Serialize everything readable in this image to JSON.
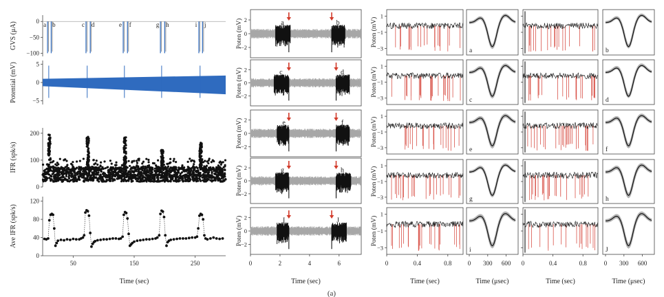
{
  "figure_caption": "(a)",
  "chart_data": [
    {
      "type": "line",
      "panel": "gvs",
      "ylabel": "GVS (μA)",
      "ylim": [
        -110,
        20
      ],
      "yticks": [
        "0",
        "−50",
        "−100"
      ],
      "xlim": [
        0,
        300
      ],
      "letters": [
        "a",
        "b",
        "c",
        "d",
        "e",
        "f",
        "g",
        "h",
        "i",
        "j"
      ],
      "pulse_times": [
        8,
        14,
        71,
        78,
        132,
        139,
        193,
        200,
        256,
        262
      ],
      "pulse_amplitude": -100
    },
    {
      "type": "line",
      "panel": "potential",
      "ylabel": "Potential (mV)",
      "ylim": [
        -6,
        6
      ],
      "yticks": [
        "5",
        "0",
        "−5"
      ],
      "xlim": [
        0,
        300
      ],
      "band_start": [
        -1.0,
        1.0
      ],
      "band_end": [
        -3.2,
        1.9
      ]
    },
    {
      "type": "scatter",
      "panel": "ifr",
      "ylabel": "IFR (spk/s)",
      "ylim": [
        0,
        220
      ],
      "yticks": [
        "200",
        "100",
        "0"
      ],
      "xlim": [
        0,
        300
      ],
      "baseline_range": [
        20,
        75
      ],
      "bursts": [
        {
          "x": 11,
          "peak": 195
        },
        {
          "x": 74,
          "peak": 190
        },
        {
          "x": 135,
          "peak": 185
        },
        {
          "x": 196,
          "peak": 140
        },
        {
          "x": 259,
          "peak": 165
        }
      ]
    },
    {
      "type": "line",
      "panel": "ave-ifr",
      "ylabel": "Ave IFR (spk/s)",
      "ylim": [
        0,
        130
      ],
      "yticks": [
        "120",
        "80",
        "40",
        "0"
      ],
      "xticks": [
        "50",
        "150",
        "250"
      ],
      "xlim": [
        0,
        300
      ],
      "xlabel": "Time (sec)",
      "x": [
        3,
        6,
        9,
        11,
        13,
        15,
        17,
        19,
        21,
        23,
        25,
        30,
        35,
        40,
        45,
        50,
        55,
        60,
        63,
        66,
        68,
        70,
        72,
        74,
        76,
        78,
        80,
        82,
        84,
        86,
        90,
        95,
        100,
        105,
        110,
        115,
        120,
        125,
        128,
        131,
        133,
        135,
        137,
        139,
        141,
        143,
        145,
        147,
        150,
        155,
        160,
        165,
        170,
        175,
        180,
        185,
        188,
        191,
        193,
        195,
        197,
        199,
        201,
        203,
        205,
        207,
        210,
        215,
        220,
        225,
        230,
        235,
        240,
        245,
        250,
        253,
        255,
        257,
        259,
        261,
        263,
        265,
        267,
        270,
        275,
        280,
        285,
        290,
        295
      ],
      "y": [
        37,
        36,
        38,
        78,
        90,
        92,
        90,
        60,
        22,
        28,
        33,
        35,
        34,
        36,
        35,
        37,
        36,
        36,
        38,
        40,
        45,
        95,
        100,
        98,
        88,
        50,
        20,
        26,
        30,
        32,
        34,
        35,
        36,
        36,
        37,
        38,
        38,
        37,
        38,
        42,
        90,
        96,
        94,
        82,
        48,
        22,
        25,
        28,
        31,
        33,
        34,
        35,
        36,
        36,
        37,
        38,
        40,
        45,
        92,
        99,
        97,
        85,
        45,
        22,
        30,
        33,
        35,
        36,
        37,
        38,
        38,
        38,
        39,
        40,
        40,
        42,
        60,
        88,
        92,
        90,
        80,
        45,
        38,
        36,
        38,
        40,
        38,
        37,
        38
      ]
    },
    {
      "type": "line",
      "panel": "middle-traces",
      "ylabel": "Poten (mV)",
      "yticks": [
        "2",
        "0",
        "−2"
      ],
      "xticks": [
        "0",
        "2",
        "4",
        "6"
      ],
      "xlim": [
        0,
        7.5
      ],
      "xlabel": "Time (sec)",
      "rows": [
        {
          "left": "a",
          "right": "b",
          "arrows": [
            2.6,
            5.5
          ],
          "burst_left": [
            1.7,
            2.7
          ],
          "burst_right": [
            5.5,
            6.4
          ]
        },
        {
          "left": "c",
          "right": "d",
          "arrows": [
            2.6,
            5.8
          ],
          "burst_left": [
            1.6,
            2.6
          ],
          "burst_right": [
            5.8,
            6.7
          ]
        },
        {
          "left": "e",
          "right": "f",
          "arrows": [
            2.6,
            5.8
          ],
          "burst_left": [
            1.8,
            2.6
          ],
          "burst_right": [
            5.8,
            6.7
          ]
        },
        {
          "left": "g",
          "right": "h",
          "arrows": [
            2.6,
            5.8
          ],
          "burst_left": [
            1.7,
            2.6
          ],
          "burst_right": [
            5.8,
            6.8
          ]
        },
        {
          "left": "I",
          "right": "J",
          "arrows": [
            2.6,
            5.5
          ],
          "burst_left": [
            1.8,
            2.6
          ],
          "burst_right": [
            5.5,
            6.5
          ]
        }
      ]
    },
    {
      "type": "line",
      "panel": "right-spikes",
      "ylabel": "Poten (mV)",
      "yticks": [
        "1",
        "−1",
        "−3"
      ],
      "xticks_trace": [
        "0",
        "0.4",
        "0.8"
      ],
      "xticks_wave": [
        "0",
        "300",
        "600"
      ],
      "xlabel_trace": "Time (sec)",
      "xlabel_wave": "Time (μsec)",
      "trace_xlim": [
        0,
        1.0
      ],
      "wave_xlim": [
        0,
        750
      ],
      "pairs": [
        {
          "row": 0,
          "left_letter": "a",
          "right_letter": "b"
        },
        {
          "row": 1,
          "left_letter": "c",
          "right_letter": "d"
        },
        {
          "row": 2,
          "left_letter": "e",
          "right_letter": "f"
        },
        {
          "row": 3,
          "left_letter": "g",
          "right_letter": "h"
        },
        {
          "row": 4,
          "left_letter": "i",
          "right_letter": "J"
        }
      ]
    }
  ],
  "colors": {
    "blue": "#2f6bbf",
    "black": "#111111",
    "gray": "#a7a7a7",
    "red": "#d23a2a",
    "red_trace": "#d9534a"
  }
}
